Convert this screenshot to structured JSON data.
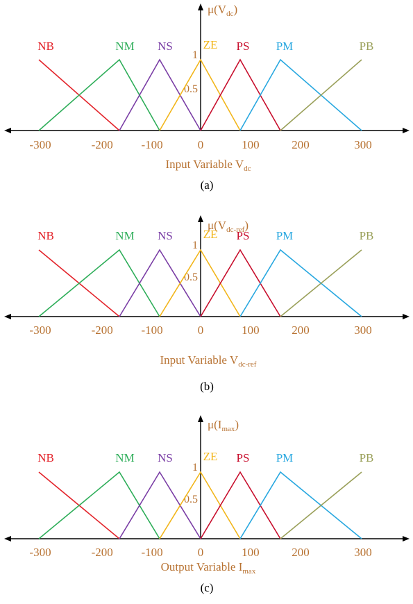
{
  "colors": {
    "axis": "#000000",
    "label_text": "#b87333",
    "caption_text": "#000000",
    "NB": "#e3242b",
    "NM": "#2fae5a",
    "NS": "#7b3fa6",
    "ZE": "#f2b61c",
    "PS": "#c8102e",
    "PM": "#29a8e0",
    "PB": "#9aa05a"
  },
  "chart_data": [
    {
      "type": "line",
      "panel": "a",
      "caption": "(a)",
      "xlabel_main": "Input Variable V",
      "xlabel_sub": "dc",
      "ylabel_main": "μ(V",
      "ylabel_sub": "dc",
      "ylabel_close": ")",
      "x_ticks": [
        -300,
        -200,
        -100,
        0,
        100,
        200,
        300
      ],
      "x_tick_labels": [
        "-300",
        "-200",
        "-100",
        "0",
        "100",
        "200",
        "300"
      ],
      "y_ticks": [
        0.5,
        1
      ],
      "y_tick_labels": [
        "0.5",
        "1"
      ],
      "xlim": [
        -300,
        300
      ],
      "ylim": [
        0,
        1
      ],
      "series": [
        {
          "name": "NB",
          "x": [
            -300,
            -170
          ],
          "y": [
            1,
            0
          ]
        },
        {
          "name": "NM",
          "x": [
            -300,
            -170,
            -80
          ],
          "y": [
            0,
            1,
            0
          ]
        },
        {
          "name": "NS",
          "x": [
            -170,
            -80,
            0
          ],
          "y": [
            0,
            1,
            0
          ]
        },
        {
          "name": "ZE",
          "x": [
            -80,
            0,
            80
          ],
          "y": [
            0,
            1,
            0
          ]
        },
        {
          "name": "PS",
          "x": [
            0,
            80,
            170
          ],
          "y": [
            0,
            1,
            0
          ]
        },
        {
          "name": "PM",
          "x": [
            80,
            170,
            300
          ],
          "y": [
            0,
            1,
            0
          ]
        },
        {
          "name": "PB",
          "x": [
            170,
            300
          ],
          "y": [
            0,
            1
          ]
        }
      ]
    },
    {
      "type": "line",
      "panel": "b",
      "caption": "(b)",
      "xlabel_main": "Input Variable V",
      "xlabel_sub": "dc-ref",
      "ylabel_main": "μ(V",
      "ylabel_sub": "dc-ref",
      "ylabel_close": ")",
      "x_ticks": [
        -300,
        -200,
        -100,
        0,
        100,
        200,
        300
      ],
      "x_tick_labels": [
        "-300",
        "-200",
        "-100",
        "0",
        "100",
        "200",
        "300"
      ],
      "y_ticks": [
        0.5,
        1
      ],
      "y_tick_labels": [
        "0.5",
        "1"
      ],
      "xlim": [
        -300,
        300
      ],
      "ylim": [
        0,
        1
      ],
      "series": [
        {
          "name": "NB",
          "x": [
            -300,
            -170
          ],
          "y": [
            1,
            0
          ]
        },
        {
          "name": "NM",
          "x": [
            -300,
            -170,
            -80
          ],
          "y": [
            0,
            1,
            0
          ]
        },
        {
          "name": "NS",
          "x": [
            -170,
            -80,
            0
          ],
          "y": [
            0,
            1,
            0
          ]
        },
        {
          "name": "ZE",
          "x": [
            -80,
            0,
            80
          ],
          "y": [
            0,
            1,
            0
          ]
        },
        {
          "name": "PS",
          "x": [
            0,
            80,
            170
          ],
          "y": [
            0,
            1,
            0
          ]
        },
        {
          "name": "PM",
          "x": [
            80,
            170,
            300
          ],
          "y": [
            0,
            1,
            0
          ]
        },
        {
          "name": "PB",
          "x": [
            170,
            300
          ],
          "y": [
            0,
            1
          ]
        }
      ]
    },
    {
      "type": "line",
      "panel": "c",
      "caption": "(c)",
      "xlabel_main": "Output Variable  I",
      "xlabel_sub": "max",
      "ylabel_main": "μ(I",
      "ylabel_sub": "max",
      "ylabel_close": ")",
      "x_ticks": [
        -300,
        -200,
        -100,
        0,
        100,
        200,
        300
      ],
      "x_tick_labels": [
        "-300",
        "-200",
        "-100",
        "0",
        "100",
        "200",
        "300"
      ],
      "y_ticks": [
        0.5,
        1
      ],
      "y_tick_labels": [
        "0.5",
        "1"
      ],
      "xlim": [
        -300,
        300
      ],
      "ylim": [
        0,
        1
      ],
      "series": [
        {
          "name": "NB",
          "x": [
            -300,
            -170
          ],
          "y": [
            1,
            0
          ]
        },
        {
          "name": "NM",
          "x": [
            -300,
            -170,
            -80
          ],
          "y": [
            0,
            1,
            0
          ]
        },
        {
          "name": "NS",
          "x": [
            -170,
            -80,
            0
          ],
          "y": [
            0,
            1,
            0
          ]
        },
        {
          "name": "ZE",
          "x": [
            -80,
            0,
            80
          ],
          "y": [
            0,
            1,
            0
          ]
        },
        {
          "name": "PS",
          "x": [
            0,
            80,
            170
          ],
          "y": [
            0,
            1,
            0
          ]
        },
        {
          "name": "PM",
          "x": [
            80,
            170,
            300
          ],
          "y": [
            0,
            1,
            0
          ]
        },
        {
          "name": "PB",
          "x": [
            170,
            300
          ],
          "y": [
            0,
            1
          ]
        }
      ]
    }
  ]
}
